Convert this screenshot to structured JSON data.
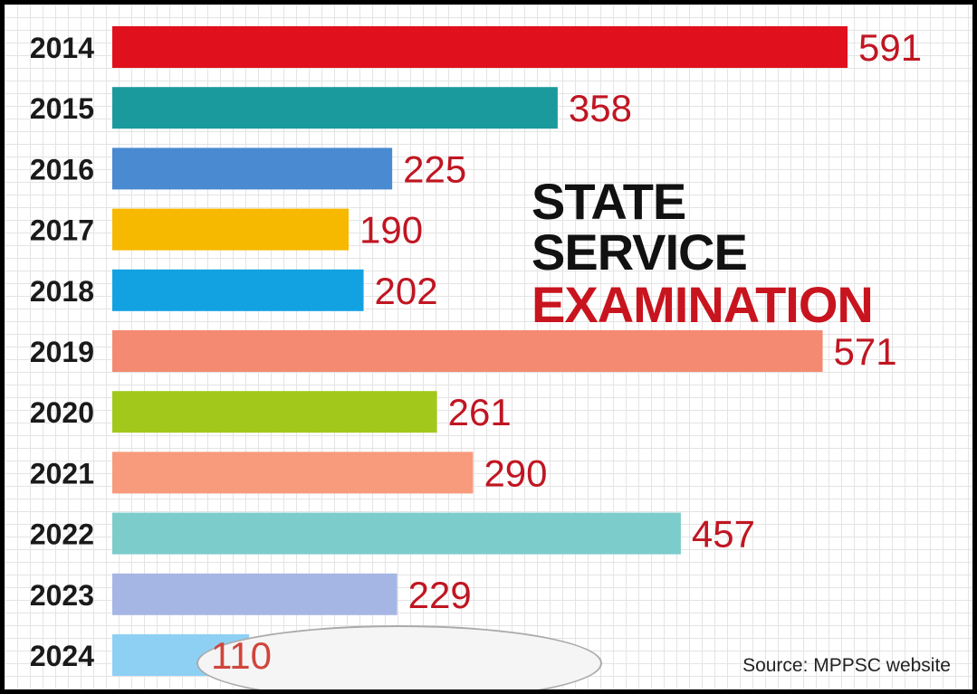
{
  "chart_data": {
    "type": "bar",
    "orientation": "horizontal",
    "title": "STATE SERVICE EXAMINATION",
    "title_line1": "STATE SERVICE",
    "title_line2": "EXAMINATION",
    "categories": [
      "2014",
      "2015",
      "2016",
      "2017",
      "2018",
      "2019",
      "2020",
      "2021",
      "2022",
      "2023",
      "2024"
    ],
    "values": [
      591,
      358,
      225,
      190,
      202,
      571,
      261,
      290,
      457,
      229,
      110
    ],
    "value_labels": [
      "591",
      "358",
      "225",
      "190",
      "202",
      "571",
      "261",
      "290",
      "457",
      "229",
      "110"
    ],
    "colors": [
      "#e0101c",
      "#1a9a9c",
      "#4a8ad0",
      "#f7b800",
      "#12a2e2",
      "#f48a72",
      "#a2c81c",
      "#f89a7c",
      "#7ccccc",
      "#a6b6e4",
      "#8ed0f4"
    ],
    "xlim": [
      0,
      600
    ],
    "grid": true,
    "source": "Source: MPPSC website"
  }
}
